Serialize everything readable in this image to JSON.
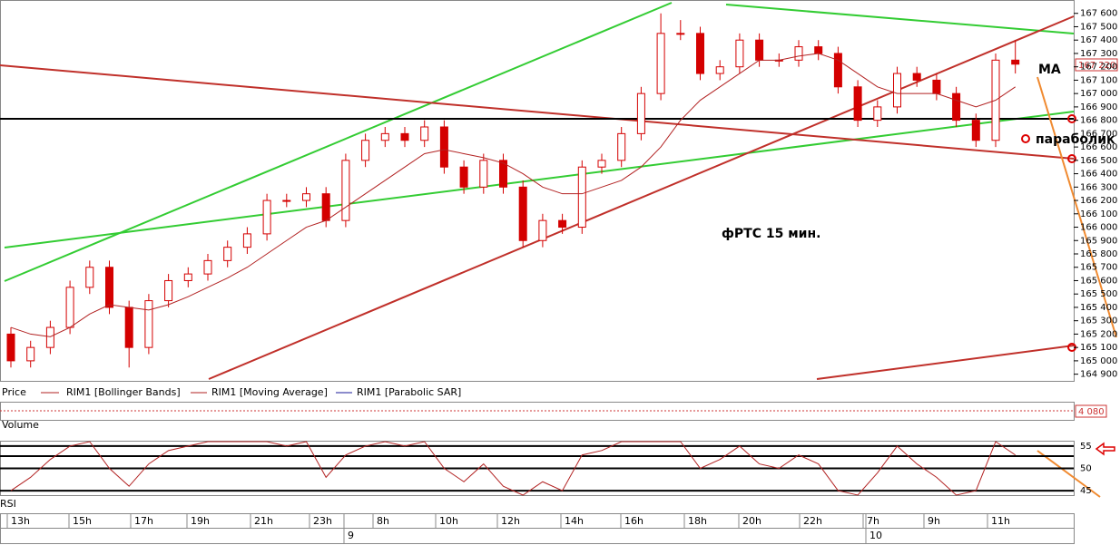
{
  "chart_data": {
    "type": "candlestick",
    "annotations": {
      "ma": "МА",
      "sar": "параболик",
      "title": "фРТС  15 мин."
    },
    "legend": [
      "Price",
      "RIM1 [Bollinger Bands]",
      "RIM1 [Moving Average]",
      "RIM1 [Parabolic SAR]"
    ],
    "last_price_label": "167 220",
    "volume": {
      "name": "Volume",
      "last_label": "4 080"
    },
    "open": [
      165200,
      165000,
      165100,
      165250,
      165550,
      165700,
      165400,
      165100,
      165450,
      165600,
      165650,
      165750,
      165850,
      165950,
      166200,
      166200,
      166250,
      166050,
      166500,
      166650,
      166700,
      166650,
      166750,
      166450,
      166300,
      166500,
      166300,
      165900,
      166050,
      166000,
      166450,
      166500,
      166700,
      167000,
      167450,
      167450,
      167150,
      167200,
      167400,
      167250,
      167250,
      167350,
      167300,
      167050,
      166800,
      166900,
      167150,
      167100,
      167000,
      166800,
      166650,
      167250
    ],
    "high": [
      165250,
      165150,
      165300,
      165600,
      165750,
      165750,
      165450,
      165500,
      165650,
      165700,
      165800,
      165900,
      166000,
      166250,
      166250,
      166300,
      166300,
      166550,
      166700,
      166750,
      166750,
      166800,
      166800,
      166500,
      166550,
      166550,
      166350,
      166100,
      166100,
      166500,
      166550,
      166750,
      167050,
      167600,
      167550,
      167500,
      167250,
      167450,
      167450,
      167300,
      167400,
      167400,
      167350,
      167100,
      166950,
      167200,
      167200,
      167150,
      167050,
      166850,
      167300,
      167400
    ],
    "low": [
      164950,
      164950,
      165050,
      165200,
      165500,
      165350,
      164950,
      165050,
      165400,
      165550,
      165600,
      165700,
      165800,
      165900,
      166150,
      166150,
      166000,
      166000,
      166450,
      166600,
      166600,
      166600,
      166400,
      166250,
      166250,
      166250,
      165850,
      165850,
      165950,
      165950,
      166400,
      166450,
      166650,
      166950,
      167400,
      167100,
      167100,
      167150,
      167200,
      167200,
      167200,
      167250,
      167000,
      166750,
      166750,
      166850,
      167050,
      166950,
      166750,
      166600,
      166600,
      167150
    ],
    "close": [
      165000,
      165100,
      165250,
      165550,
      165700,
      165400,
      165100,
      165450,
      165600,
      165650,
      165750,
      165850,
      165950,
      166200,
      166200,
      166250,
      166050,
      166500,
      166650,
      166700,
      166650,
      166750,
      166450,
      166300,
      166500,
      166300,
      165900,
      166050,
      166000,
      166450,
      166500,
      166700,
      167000,
      167450,
      167450,
      167150,
      167200,
      167400,
      167250,
      167250,
      167350,
      167300,
      167050,
      166800,
      166900,
      167150,
      167100,
      167000,
      166800,
      166650,
      167250,
      167220
    ],
    "color": "#d40000",
    "ma": {
      "name": "RIM1 [Moving Average]",
      "color": "#b22222",
      "values": [
        165250,
        165200,
        165180,
        165250,
        165350,
        165420,
        165400,
        165380,
        165420,
        165480,
        165550,
        165620,
        165700,
        165800,
        165900,
        166000,
        166050,
        166150,
        166250,
        166350,
        166450,
        166550,
        166580,
        166550,
        166520,
        166480,
        166400,
        166300,
        166250,
        166250,
        166300,
        166350,
        166450,
        166600,
        166800,
        166950,
        167050,
        167150,
        167250,
        167250,
        167280,
        167300,
        167250,
        167150,
        167050,
        167000,
        167000,
        167000,
        166950,
        166900,
        166950,
        167050
      ]
    },
    "ylim": [
      164850,
      167700
    ],
    "yticks": [
      {
        "value": 164900,
        "label": "164 900"
      },
      {
        "value": 165000,
        "label": "165 000"
      },
      {
        "value": 165100,
        "label": "165 100"
      },
      {
        "value": 165200,
        "label": "165 200"
      },
      {
        "value": 165300,
        "label": "165 300"
      },
      {
        "value": 165400,
        "label": "165 400"
      },
      {
        "value": 165500,
        "label": "165 500"
      },
      {
        "value": 165600,
        "label": "165 600"
      },
      {
        "value": 165700,
        "label": "165 700"
      },
      {
        "value": 165800,
        "label": "165 800"
      },
      {
        "value": 165900,
        "label": "165 900"
      },
      {
        "value": 166000,
        "label": "166 000"
      },
      {
        "value": 166100,
        "label": "166 100"
      },
      {
        "value": 166200,
        "label": "166 200"
      },
      {
        "value": 166300,
        "label": "166 300"
      },
      {
        "value": 166400,
        "label": "166 400"
      },
      {
        "value": 166500,
        "label": "166 500"
      },
      {
        "value": 166600,
        "label": "166 600"
      },
      {
        "value": 166700,
        "label": "166 700"
      },
      {
        "value": 166800,
        "label": "166 800"
      },
      {
        "value": 166900,
        "label": "166 900"
      },
      {
        "value": 167000,
        "label": "167 000"
      },
      {
        "value": 167100,
        "label": "167 100"
      },
      {
        "value": 167200,
        "label": "167 200"
      },
      {
        "value": 167300,
        "label": "167 300"
      },
      {
        "value": 167400,
        "label": "167 400"
      },
      {
        "value": 167500,
        "label": "167 500"
      },
      {
        "value": 167600,
        "label": "167 600"
      }
    ],
    "rsi": {
      "name": "RSI",
      "color": "#b22222",
      "ylim": [
        44,
        56
      ],
      "yticks": [
        45,
        50,
        55
      ],
      "values": [
        45,
        48,
        52,
        55,
        56,
        50,
        46,
        51,
        54,
        55,
        56,
        56,
        56,
        56,
        55,
        56,
        48,
        53,
        55,
        56,
        55,
        56,
        50,
        47,
        51,
        46,
        44,
        47,
        45,
        53,
        54,
        56,
        56,
        56,
        56,
        50,
        52,
        55,
        51,
        50,
        53,
        51,
        45,
        44,
        49,
        55,
        51,
        48,
        44,
        45,
        56,
        53
      ]
    },
    "time_axis": {
      "hours": [
        "13h",
        "15h",
        "17h",
        "19h",
        "21h",
        "23h",
        "8h",
        "10h",
        "12h",
        "14h",
        "16h",
        "18h",
        "20h",
        "22h",
        "7h",
        "9h",
        "11h"
      ],
      "days": [
        "9",
        "10"
      ]
    }
  }
}
